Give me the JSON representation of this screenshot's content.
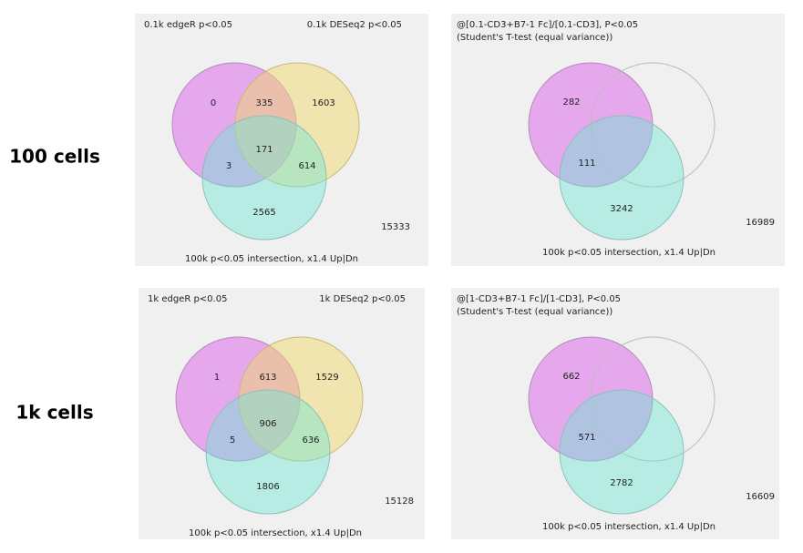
{
  "rows": [
    {
      "label": "100 cells",
      "panels": [
        {
          "set_a": "0.1k edgeR p<0.05",
          "set_b": "0.1k DESeq2 p<0.05",
          "footer": "100k p<0.05 intersection, x1.4 Up|Dn",
          "regions": {
            "a": 0,
            "ab": 335,
            "b": 1603,
            "abc": 171,
            "ac": 3,
            "bc": 614,
            "c": 2565
          },
          "outside": 15333
        },
        {
          "title": "@[0.1-CD3+B7-1 Fc]/[0.1-CD3], P<0.05",
          "subtitle": "(Student's T-test (equal variance))",
          "footer": "100k p<0.05 intersection, x1.4 Up|Dn",
          "regions": {
            "a": 282,
            "ac": 111,
            "c": 3242
          },
          "outside": 16989
        }
      ]
    },
    {
      "label": "1k cells",
      "panels": [
        {
          "set_a": "1k edgeR p<0.05",
          "set_b": "1k DESeq2 p<0.05",
          "footer": "100k p<0.05 intersection, x1.4 Up|Dn",
          "regions": {
            "a": 1,
            "ab": 613,
            "b": 1529,
            "abc": 906,
            "ac": 5,
            "bc": 636,
            "c": 1806
          },
          "outside": 15128
        },
        {
          "title": "@[1-CD3+B7-1 Fc]/[1-CD3], P<0.05",
          "subtitle": "(Student's T-test (equal variance))",
          "footer": "100k p<0.05 intersection, x1.4 Up|Dn",
          "regions": {
            "a": 662,
            "ac": 571,
            "c": 2782
          },
          "outside": 16609
        }
      ]
    }
  ]
}
